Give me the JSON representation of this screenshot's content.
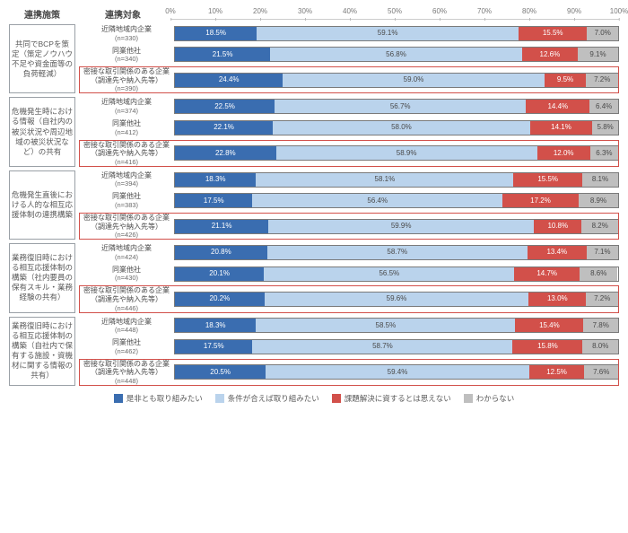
{
  "header": {
    "col1": "連携施策",
    "col2": "連携対象"
  },
  "axis": {
    "ticks": [
      "0%",
      "10%",
      "20%",
      "30%",
      "40%",
      "50%",
      "60%",
      "70%",
      "80%",
      "90%",
      "100%"
    ]
  },
  "legend": [
    "是非とも取り組みたい",
    "条件が合えば取り組みたい",
    "課題解決に資するとは思えない",
    "わからない"
  ],
  "colors": {
    "s0": "#3a6db0",
    "s1": "#bad3ec",
    "s2": "#d2504a",
    "s3": "#bfbfbf",
    "border": "#9aa0a6",
    "highlight": "#d2504a"
  },
  "groups": [
    {
      "label": "共同でBCPを策定（策定ノウハウ不足や資金面等の負荷軽減）",
      "rows": [
        {
          "label": "近隣地域内企業",
          "n": "(n=330)",
          "vals": [
            18.5,
            59.1,
            15.5,
            7.0
          ]
        },
        {
          "label": "同業他社",
          "n": "(n=340)",
          "vals": [
            21.5,
            56.8,
            12.6,
            9.1
          ]
        },
        {
          "label": "密接な取引関係のある企業（調達先や納入先等）",
          "n": "(n=390)",
          "vals": [
            24.4,
            59.0,
            9.5,
            7.2
          ],
          "hl": true
        }
      ]
    },
    {
      "label": "危機発生時における情報（自社内の被災状況や周辺地域の被災状況など）の共有",
      "rows": [
        {
          "label": "近隣地域内企業",
          "n": "(n=374)",
          "vals": [
            22.5,
            56.7,
            14.4,
            6.4
          ]
        },
        {
          "label": "同業他社",
          "n": "(n=412)",
          "vals": [
            22.1,
            58.0,
            14.1,
            5.8
          ]
        },
        {
          "label": "密接な取引関係のある企業（調達先や納入先等）",
          "n": "(n=416)",
          "vals": [
            22.8,
            58.9,
            12.0,
            6.3
          ],
          "hl": true
        }
      ]
    },
    {
      "label": "危機発生直後における人的な相互応援体制の連携構築",
      "rows": [
        {
          "label": "近隣地域内企業",
          "n": "(n=394)",
          "vals": [
            18.3,
            58.1,
            15.5,
            8.1
          ]
        },
        {
          "label": "同業他社",
          "n": "(n=383)",
          "vals": [
            17.5,
            56.4,
            17.2,
            8.9
          ]
        },
        {
          "label": "密接な取引関係のある企業（調達先や納入先等）",
          "n": "(n=426)",
          "vals": [
            21.1,
            59.9,
            10.8,
            8.2
          ],
          "hl": true
        }
      ]
    },
    {
      "label": "業務復旧時における相互応援体制の構築（社内要員の保有スキル・業務経験の共有）",
      "rows": [
        {
          "label": "近隣地域内企業",
          "n": "(n=424)",
          "vals": [
            20.8,
            58.7,
            13.4,
            7.1
          ]
        },
        {
          "label": "同業他社",
          "n": "(n=430)",
          "vals": [
            20.1,
            56.5,
            14.7,
            8.6
          ]
        },
        {
          "label": "密接な取引関係のある企業（調達先や納入先等）",
          "n": "(n=446)",
          "vals": [
            20.2,
            59.6,
            13.0,
            7.2
          ],
          "hl": true
        }
      ]
    },
    {
      "label": "業務復旧時における相互応援体制の構築（自社内で保有する施設・資機材に関する情報の共有）",
      "rows": [
        {
          "label": "近隣地域内企業",
          "n": "(n=448)",
          "vals": [
            18.3,
            58.5,
            15.4,
            7.8
          ]
        },
        {
          "label": "同業他社",
          "n": "(n=462)",
          "vals": [
            17.5,
            58.7,
            15.8,
            8.0
          ]
        },
        {
          "label": "密接な取引関係のある企業（調達先や納入先等）",
          "n": "(n=448)",
          "vals": [
            20.5,
            59.4,
            12.5,
            7.6
          ],
          "hl": true
        }
      ]
    }
  ]
}
